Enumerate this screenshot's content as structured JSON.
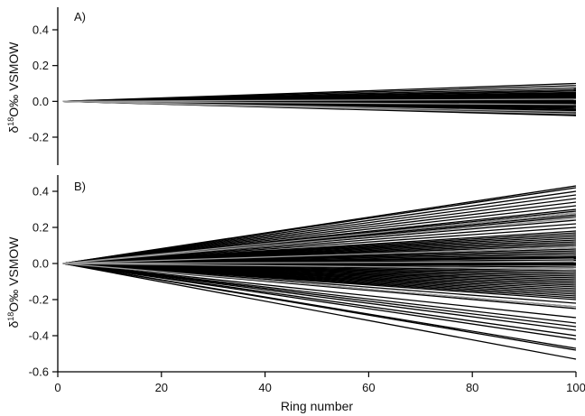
{
  "chart_data": [
    {
      "panel": "A)",
      "type": "line",
      "ylabel_main": "δ",
      "ylabel_sup": "18",
      "ylabel_rest": "O‰ VSMOW",
      "ylim": [
        -0.3,
        0.5
      ],
      "yticks": [
        {
          "value": 0.4,
          "label": "0.4"
        },
        {
          "value": 0.2,
          "label": "0.2"
        },
        {
          "value": 0.0,
          "label": "0.0"
        },
        {
          "value": -0.2,
          "label": "-0.2"
        }
      ],
      "xlim": [
        0,
        100
      ],
      "x_range": [
        1,
        100
      ],
      "line_color": "#000000",
      "highlight_color": "#9a9a9a",
      "series_end_values": [
        0.1,
        0.088,
        0.075,
        0.065,
        0.058,
        0.05,
        0.045,
        0.04,
        0.035,
        0.03,
        0.026,
        0.022,
        0.018,
        0.014,
        0.01,
        0.006,
        0.002,
        -0.002,
        -0.006,
        -0.01,
        -0.014,
        -0.018,
        -0.022,
        -0.026,
        -0.03,
        -0.035,
        -0.04,
        -0.046,
        -0.052,
        -0.058,
        -0.064,
        -0.07,
        -0.075,
        -0.08
      ],
      "highlight_end_values": [
        0.012,
        -0.018,
        -0.058,
        -0.07
      ]
    },
    {
      "panel": "B)",
      "type": "line",
      "ylabel_main": "δ",
      "ylabel_sup": "18",
      "ylabel_rest": "O‰ VSMOW",
      "xlabel": "Ring number",
      "ylim": [
        -0.6,
        0.5
      ],
      "yticks": [
        {
          "value": 0.4,
          "label": "0.4"
        },
        {
          "value": 0.2,
          "label": "0.2"
        },
        {
          "value": 0.0,
          "label": "0.0"
        },
        {
          "value": -0.2,
          "label": "-0.2"
        },
        {
          "value": -0.4,
          "label": "-0.4"
        },
        {
          "value": -0.6,
          "label": "-0.6"
        }
      ],
      "xlim": [
        0,
        100
      ],
      "xticks": [
        {
          "value": 0,
          "label": "0"
        },
        {
          "value": 20,
          "label": "20"
        },
        {
          "value": 40,
          "label": "40"
        },
        {
          "value": 60,
          "label": "60"
        },
        {
          "value": 80,
          "label": "80"
        },
        {
          "value": 100,
          "label": "100"
        }
      ],
      "x_range": [
        1,
        100
      ],
      "line_color": "#000000",
      "highlight_color": "#9a9a9a",
      "series_end_values": [
        0.43,
        0.42,
        0.4,
        0.38,
        0.36,
        0.34,
        0.32,
        0.3,
        0.29,
        0.28,
        0.27,
        0.26,
        0.24,
        0.22,
        0.2,
        0.18,
        0.17,
        0.16,
        0.15,
        0.14,
        0.13,
        0.12,
        0.11,
        0.1,
        0.09,
        0.08,
        0.07,
        0.06,
        0.05,
        0.04,
        0.035,
        0.03,
        0.02,
        0.01,
        0.005,
        0.0,
        -0.005,
        -0.01,
        -0.02,
        -0.03,
        -0.04,
        -0.05,
        -0.06,
        -0.07,
        -0.08,
        -0.09,
        -0.1,
        -0.11,
        -0.12,
        -0.13,
        -0.14,
        -0.15,
        -0.16,
        -0.17,
        -0.18,
        -0.19,
        -0.2,
        -0.22,
        -0.24,
        -0.25,
        -0.3,
        -0.33,
        -0.35,
        -0.37,
        -0.4,
        -0.42,
        -0.47,
        -0.48,
        -0.53
      ],
      "highlight_end_values": [
        0.28,
        0.25,
        0.09,
        0.01,
        -0.03,
        -0.24
      ]
    }
  ]
}
